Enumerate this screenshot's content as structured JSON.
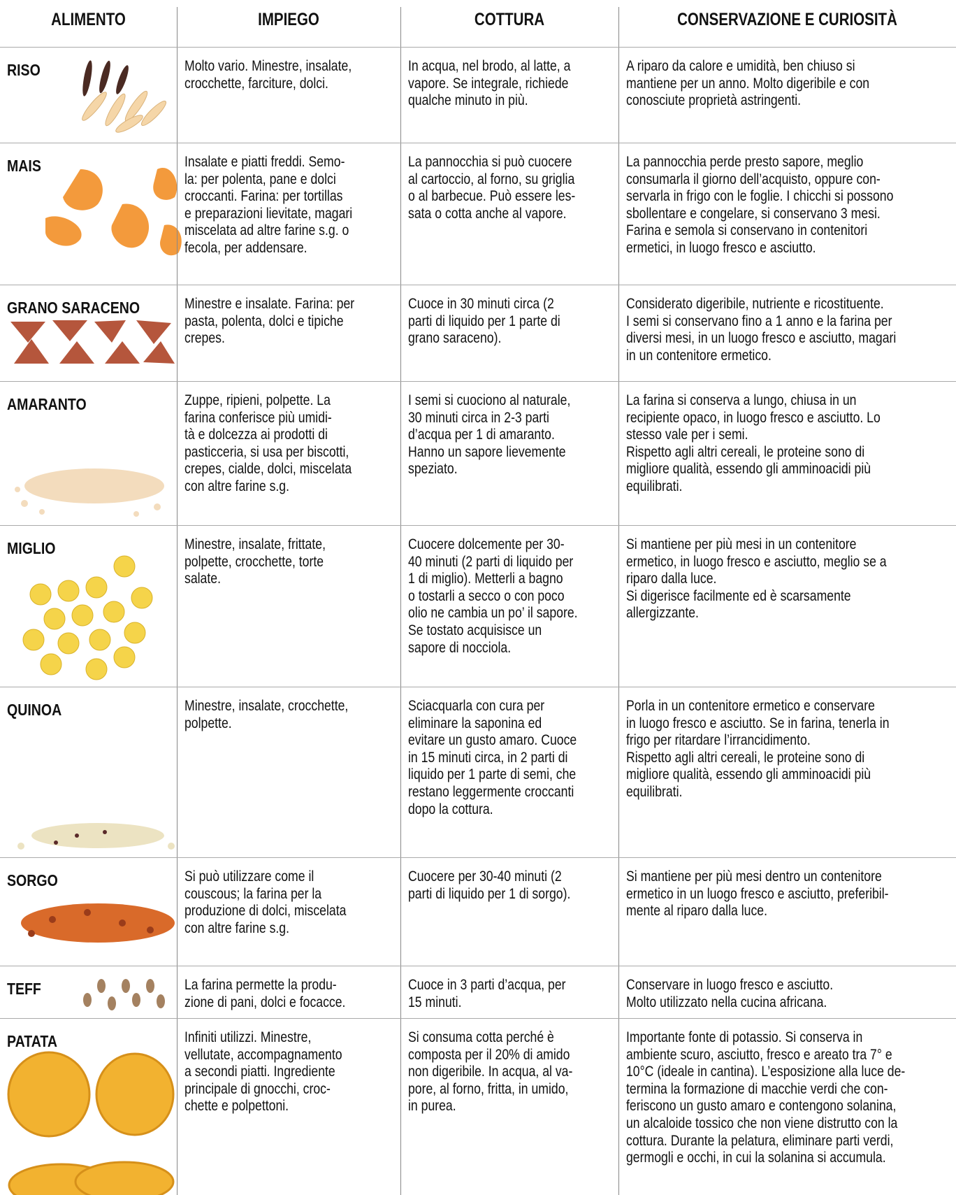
{
  "header": [
    "ALIMENTO",
    "IMPIEGO",
    "COTTURA",
    "CONSERVAZIONE E CURIOSITÀ"
  ],
  "rows": [
    {
      "name": "RISO",
      "impiego": [
        "Molto vario. Minestre, insalate,",
        "crocchette, farciture, dolci."
      ],
      "cottura": [
        "In acqua, nel brodo, al latte, a",
        "vapore. Se integrale, richiede",
        "qualche minuto in più."
      ],
      "conservazione": [
        "A riparo da calore e umidità, ben chiuso si",
        "mantiene per un anno. Molto digeribile e con",
        "conosciute proprietà astringenti."
      ]
    },
    {
      "name": "MAIS",
      "impiego": [
        "Insalate e piatti freddi. Semo-",
        "la: per polenta, pane e dolci",
        "croccanti. Farina: per tortillas",
        "e preparazioni lievitate, magari",
        "miscelata ad altre farine s.g. o",
        "fecola, per addensare."
      ],
      "cottura": [
        "La pannocchia si può cuocere",
        "al cartoccio, al forno, su griglia",
        "o al barbecue. Può essere les-",
        "sata o cotta anche al vapore."
      ],
      "conservazione": [
        "La pannocchia perde presto sapore, meglio",
        "consumarla il giorno dell’acquisto, oppure con-",
        "servarla in frigo con le foglie. I chicchi si possono",
        "sbollentare e congelare, si conservano 3 mesi.",
        "Farina e semola si conservano in contenitori",
        "ermetici, in luogo fresco e asciutto."
      ]
    },
    {
      "name": "GRANO SARACENO",
      "impiego": [
        "Minestre e insalate. Farina: per",
        "pasta, polenta, dolci e tipiche",
        "crepes."
      ],
      "cottura": [
        "Cuoce in 30 minuti circa (2",
        "parti di liquido per 1 parte di",
        "grano saraceno)."
      ],
      "conservazione": [
        "Considerato digeribile, nutriente e ricostituente.",
        "I semi si conservano fino a 1 anno e la farina per",
        "diversi mesi, in un luogo fresco e asciutto, magari",
        "in un contenitore ermetico."
      ]
    },
    {
      "name": "AMARANTO",
      "impiego": [
        "Zuppe, ripieni, polpette. La",
        "farina conferisce più umidi-",
        "tà e dolcezza ai prodotti di",
        "pasticceria, si usa per biscotti,",
        "crepes, cialde, dolci, miscelata",
        "con altre farine s.g."
      ],
      "cottura": [
        "I semi si cuociono al naturale,",
        "30 minuti circa in 2-3 parti",
        "d’acqua per 1 di amaranto.",
        "Hanno un sapore lievemente",
        "speziato."
      ],
      "conservazione": [
        "La farina si conserva a lungo, chiusa in un",
        "recipiente opaco, in luogo fresco e asciutto. Lo",
        "stesso vale per i semi.",
        "Rispetto agli altri cereali, le proteine sono di",
        "migliore qualità, essendo gli amminoacidi più",
        "equilibrati."
      ]
    },
    {
      "name": "MIGLIO",
      "impiego": [
        "Minestre, insalate, frittate,",
        "polpette, crocchette, torte",
        "salate."
      ],
      "cottura": [
        "Cuocere dolcemente per 30-",
        "40 minuti (2 parti di liquido per",
        "1 di miglio). Metterli a bagno",
        "o tostarli a secco o con poco",
        "olio ne cambia un po’ il sapore.",
        "Se tostato acquisisce un",
        "sapore di nocciola."
      ],
      "conservazione": [
        "Si mantiene per più mesi in un contenitore",
        "ermetico, in luogo fresco e asciutto, meglio se a",
        "riparo dalla luce.",
        "Si digerisce facilmente ed è scarsamente",
        "allergizzante."
      ]
    },
    {
      "name": "QUINOA",
      "impiego": [
        "Minestre, insalate, crocchette,",
        "polpette."
      ],
      "cottura": [
        "Sciacquarla con cura per",
        "eliminare la saponina ed",
        "evitare un gusto amaro. Cuoce",
        "in 15 minuti circa, in 2 parti di",
        "liquido per 1 parte di semi, che",
        "restano leggermente croccanti",
        "dopo la cottura."
      ],
      "conservazione": [
        "Porla in un contenitore ermetico e conservare",
        "in luogo fresco e asciutto. Se in farina, tenerla in",
        "frigo per ritardare l’irrancidimento.",
        "Rispetto agli altri cereali, le proteine sono di",
        "migliore qualità, essendo gli amminoacidi più",
        "equilibrati."
      ]
    },
    {
      "name": "SORGO",
      "impiego": [
        "Si può utilizzare come il",
        "couscous; la farina per la",
        "produzione di dolci, miscelata",
        "con altre farine s.g."
      ],
      "cottura": [
        "Cuocere per 30-40 minuti (2",
        "parti di liquido per 1 di sorgo)."
      ],
      "conservazione": [
        "Si mantiene per più mesi dentro un contenitore",
        "ermetico in un luogo fresco e asciutto, preferibil-",
        "mente al riparo dalla luce."
      ]
    },
    {
      "name": "TEFF",
      "impiego": [
        "La farina permette la produ-",
        "zione di pani, dolci e focacce."
      ],
      "cottura": [
        "Cuoce in 3 parti d’acqua, per",
        "15 minuti."
      ],
      "conservazione": [
        "Conservare in luogo fresco e asciutto.",
        "Molto utilizzato nella cucina africana."
      ]
    },
    {
      "name": "PATATA",
      "impiego": [
        "Infiniti utilizzi. Minestre,",
        "vellutate, accompagnamento",
        "a secondi piatti. Ingrediente",
        "principale di gnocchi, croc-",
        "chette e polpettoni."
      ],
      "cottura": [
        "Si consuma cotta perché è",
        "composta per il 20% di amido",
        "non digeribile. In acqua, al va-",
        "pore, al forno, fritta, in umido,",
        "in purea."
      ],
      "conservazione": [
        "Importante fonte di potassio. Si conserva in",
        "ambiente scuro, asciutto, fresco e areato tra 7° e",
        "10°C (ideale in cantina). L’esposizione alla luce de-",
        "termina la formazione di macchie verdi che con-",
        "feriscono un gusto amaro e contengono solanina,",
        "un alcaloide tossico che non viene distrutto con la",
        "cottura. Durante la pelatura, eliminare parti verdi,",
        "germogli e occhi, in cui la solanina si accumula."
      ]
    }
  ]
}
